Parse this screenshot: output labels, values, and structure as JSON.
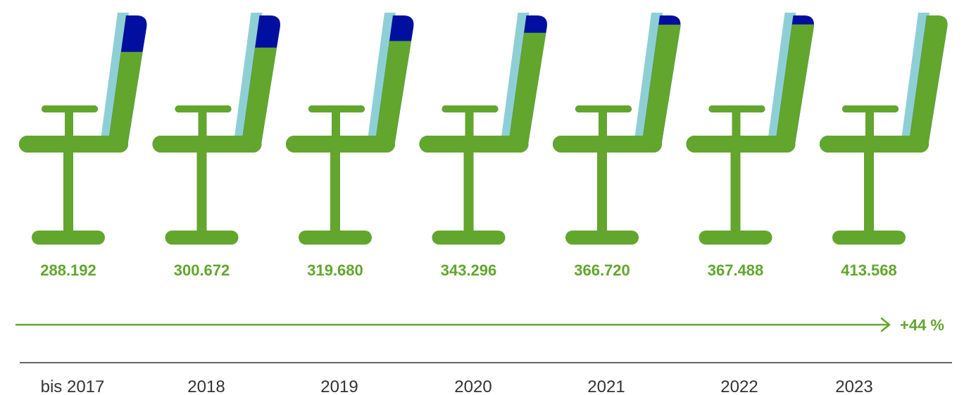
{
  "colors": {
    "green": "#62a62d",
    "navy": "#000f9f",
    "light_blue": "#8ecfd5",
    "axis": "#333333",
    "year_text": "#333333"
  },
  "chart_data": {
    "type": "bar",
    "pictogram": "office-chair",
    "categories": [
      "bis 2017",
      "2018",
      "2019",
      "2020",
      "2021",
      "2022",
      "2023"
    ],
    "values": [
      288192,
      300672,
      319680,
      343296,
      366720,
      367488,
      413568
    ],
    "value_labels": [
      "288.192",
      "300.672",
      "319.680",
      "343.296",
      "366.720",
      "367.488",
      "413.568"
    ],
    "growth_label": "+44 %",
    "title": "",
    "xlabel": "",
    "ylabel": ""
  }
}
